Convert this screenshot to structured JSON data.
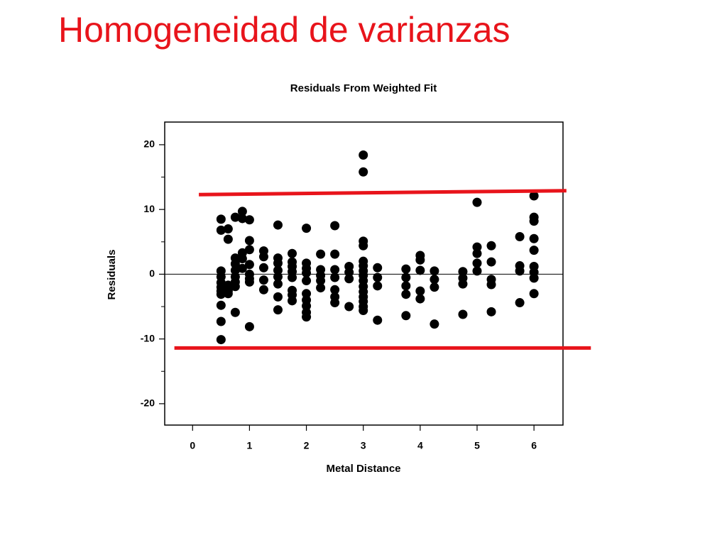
{
  "slide_title": "Homogeneidad de varianzas",
  "chart_data": {
    "type": "scatter",
    "title": "Residuals From Weighted Fit",
    "x_label": "Metal Distance",
    "y_label": "Residuals",
    "xlim": [
      -0.49,
      6.51
    ],
    "ylim": [
      -23.3,
      23.5
    ],
    "xticks": [
      0,
      1,
      2,
      3,
      4,
      5,
      6
    ],
    "yticks": [
      -20,
      -10,
      0,
      10,
      20
    ],
    "yminor_ticks": [
      -15,
      -5,
      5,
      15
    ],
    "reference_line_y": 0,
    "color": "#000000",
    "x": [
      0.5,
      0.5,
      0.5,
      0.5,
      0.5,
      0.5,
      0.5,
      0.5,
      0.5,
      0.5,
      0.5,
      0.625,
      0.625,
      0.625,
      0.625,
      0.625,
      0.75,
      0.75,
      0.75,
      0.75,
      0.75,
      0.75,
      0.75,
      0.75,
      0.875,
      0.875,
      0.875,
      0.875,
      0.875,
      1,
      1,
      1,
      1,
      1,
      1,
      1,
      1,
      1.25,
      1.25,
      1.25,
      1.25,
      1.25,
      1.5,
      1.5,
      1.5,
      1.5,
      1.5,
      1.5,
      1.5,
      1.5,
      1.75,
      1.75,
      1.75,
      1.75,
      1.75,
      1.75,
      1.75,
      1.75,
      2,
      2,
      2,
      2,
      2,
      2,
      2,
      2,
      2,
      2,
      2.25,
      2.25,
      2.25,
      2.25,
      2.25,
      2.5,
      2.5,
      2.5,
      2.5,
      2.5,
      2.5,
      2.5,
      2.75,
      2.75,
      2.75,
      2.75,
      3,
      3,
      3,
      3,
      3,
      3,
      3,
      3,
      3,
      3,
      3,
      3,
      3,
      3,
      3,
      3.25,
      3.25,
      3.25,
      3.25,
      3.75,
      3.75,
      3.75,
      3.75,
      3.75,
      4,
      4,
      4,
      4,
      4,
      4.25,
      4.25,
      4.25,
      4.25,
      4.75,
      4.75,
      4.75,
      4.75,
      5,
      5,
      5,
      5,
      5,
      5.25,
      5.25,
      5.25,
      5.25,
      5.25,
      5.75,
      5.75,
      5.75,
      5.75,
      6,
      6,
      6,
      6,
      6,
      6,
      6,
      6,
      6
    ],
    "y": [
      8.5,
      6.8,
      0.5,
      -0.4,
      -1.3,
      -2,
      -2.6,
      -3.1,
      -4.8,
      -7.3,
      -10.1,
      7,
      5.4,
      -1.7,
      -2.6,
      -3,
      8.8,
      2.5,
      1.6,
      0.6,
      -0.4,
      -1.2,
      -1.9,
      -5.9,
      9.7,
      8.6,
      3.3,
      2.4,
      0.9,
      8.4,
      5.2,
      3.8,
      1.5,
      0,
      -0.7,
      -1.2,
      -8.1,
      3.6,
      2.7,
      1,
      -0.9,
      -2.4,
      7.6,
      2.5,
      1.7,
      0.6,
      -0.4,
      -1.5,
      -3.5,
      -5.5,
      3.2,
      1.9,
      1.2,
      0.4,
      -0.5,
      -2.5,
      -3.2,
      -4.1,
      7.1,
      1.7,
      0.9,
      0.2,
      -1,
      -3,
      -4,
      -4.9,
      -5.9,
      -6.6,
      3.1,
      0.7,
      -0.2,
      -1,
      -2.1,
      7.5,
      3.1,
      0.7,
      -0.5,
      -2.4,
      -3.5,
      -4.4,
      1.2,
      0.3,
      -0.7,
      -5,
      18.4,
      15.8,
      5.1,
      4.4,
      2,
      1.3,
      0.5,
      -0.2,
      -1,
      -1.9,
      -2.7,
      -3.5,
      -4.2,
      -5,
      -5.6,
      1,
      -0.5,
      -1.8,
      -7.1,
      0.8,
      -0.5,
      -1.8,
      -3.1,
      -6.4,
      2.9,
      2.2,
      0.6,
      -2.6,
      -3.8,
      0.5,
      -0.8,
      -2,
      -7.7,
      0.4,
      -0.6,
      -1.5,
      -6.2,
      11.1,
      4.2,
      3.2,
      1.7,
      0.5,
      4.4,
      1.9,
      -0.8,
      -1.6,
      -5.8,
      5.8,
      1.3,
      0.5,
      -4.4,
      12.1,
      8.8,
      8.2,
      5.5,
      3.7,
      1.2,
      0.3,
      -0.6,
      -3
    ],
    "annotation_lines": [
      {
        "x": [
          0.11,
          6.57
        ],
        "y": [
          12.3,
          12.9
        ],
        "color": "#e8141b"
      },
      {
        "x": [
          -0.32,
          7.0
        ],
        "y": [
          -11.4,
          -11.4
        ],
        "color": "#e8141b"
      }
    ]
  }
}
